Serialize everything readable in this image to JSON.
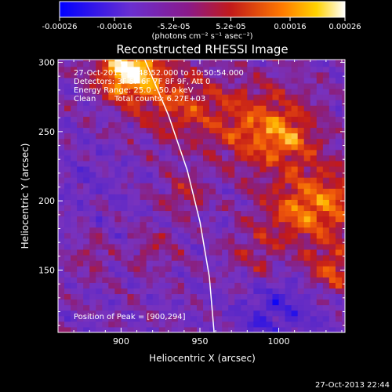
{
  "chart_data": {
    "type": "heatmap",
    "title": "Reconstructed RHESSI Image",
    "xlabel": "Heliocentric X (arcsec)",
    "ylabel": "Heliocentric Y (arcsec)",
    "xlim": [
      860,
      1042
    ],
    "ylim": [
      105,
      302
    ],
    "xticks": [
      900,
      950,
      1000
    ],
    "yticks": [
      150,
      200,
      250,
      300
    ],
    "colorbar": {
      "label": "(photons cm⁻² s⁻¹ asec⁻²)",
      "min": -0.00026,
      "max": 0.00026,
      "ticks": [
        "-0.00026",
        "-0.00016",
        "-5.2e-05",
        "5.2e-05",
        "0.00016",
        "0.00026"
      ],
      "tick_values": [
        -0.00026,
        -0.00016,
        -5.2e-05,
        5.2e-05,
        0.00016,
        0.00026
      ]
    },
    "colors": {
      "low": "#0000ff",
      "mid_low": "#7f3fbf",
      "mid": "#c21a1a",
      "mid_high": "#ff7a00",
      "high": "#ffffff"
    },
    "limb_arc": [
      {
        "x": 915,
        "y": 302
      },
      {
        "x": 930,
        "y": 262
      },
      {
        "x": 942,
        "y": 222
      },
      {
        "x": 950,
        "y": 185
      },
      {
        "x": 956,
        "y": 145
      },
      {
        "x": 959,
        "y": 105
      }
    ],
    "annotations": {
      "time_range": "27-Oct-2013 10:48:52.000 to 10:50:54.000",
      "detectors": "Detectors: 3F 5F 6F 7F 8F 9F, Att 0",
      "energy": "Energy Range: 25.0 - 50.0 keV",
      "clean": "Clean",
      "total_counts": "Total counts: 6.27E+03",
      "peak": "Position of Peak = [900,294]"
    },
    "footer_timestamp": "27-Oct-2013 22:44"
  }
}
